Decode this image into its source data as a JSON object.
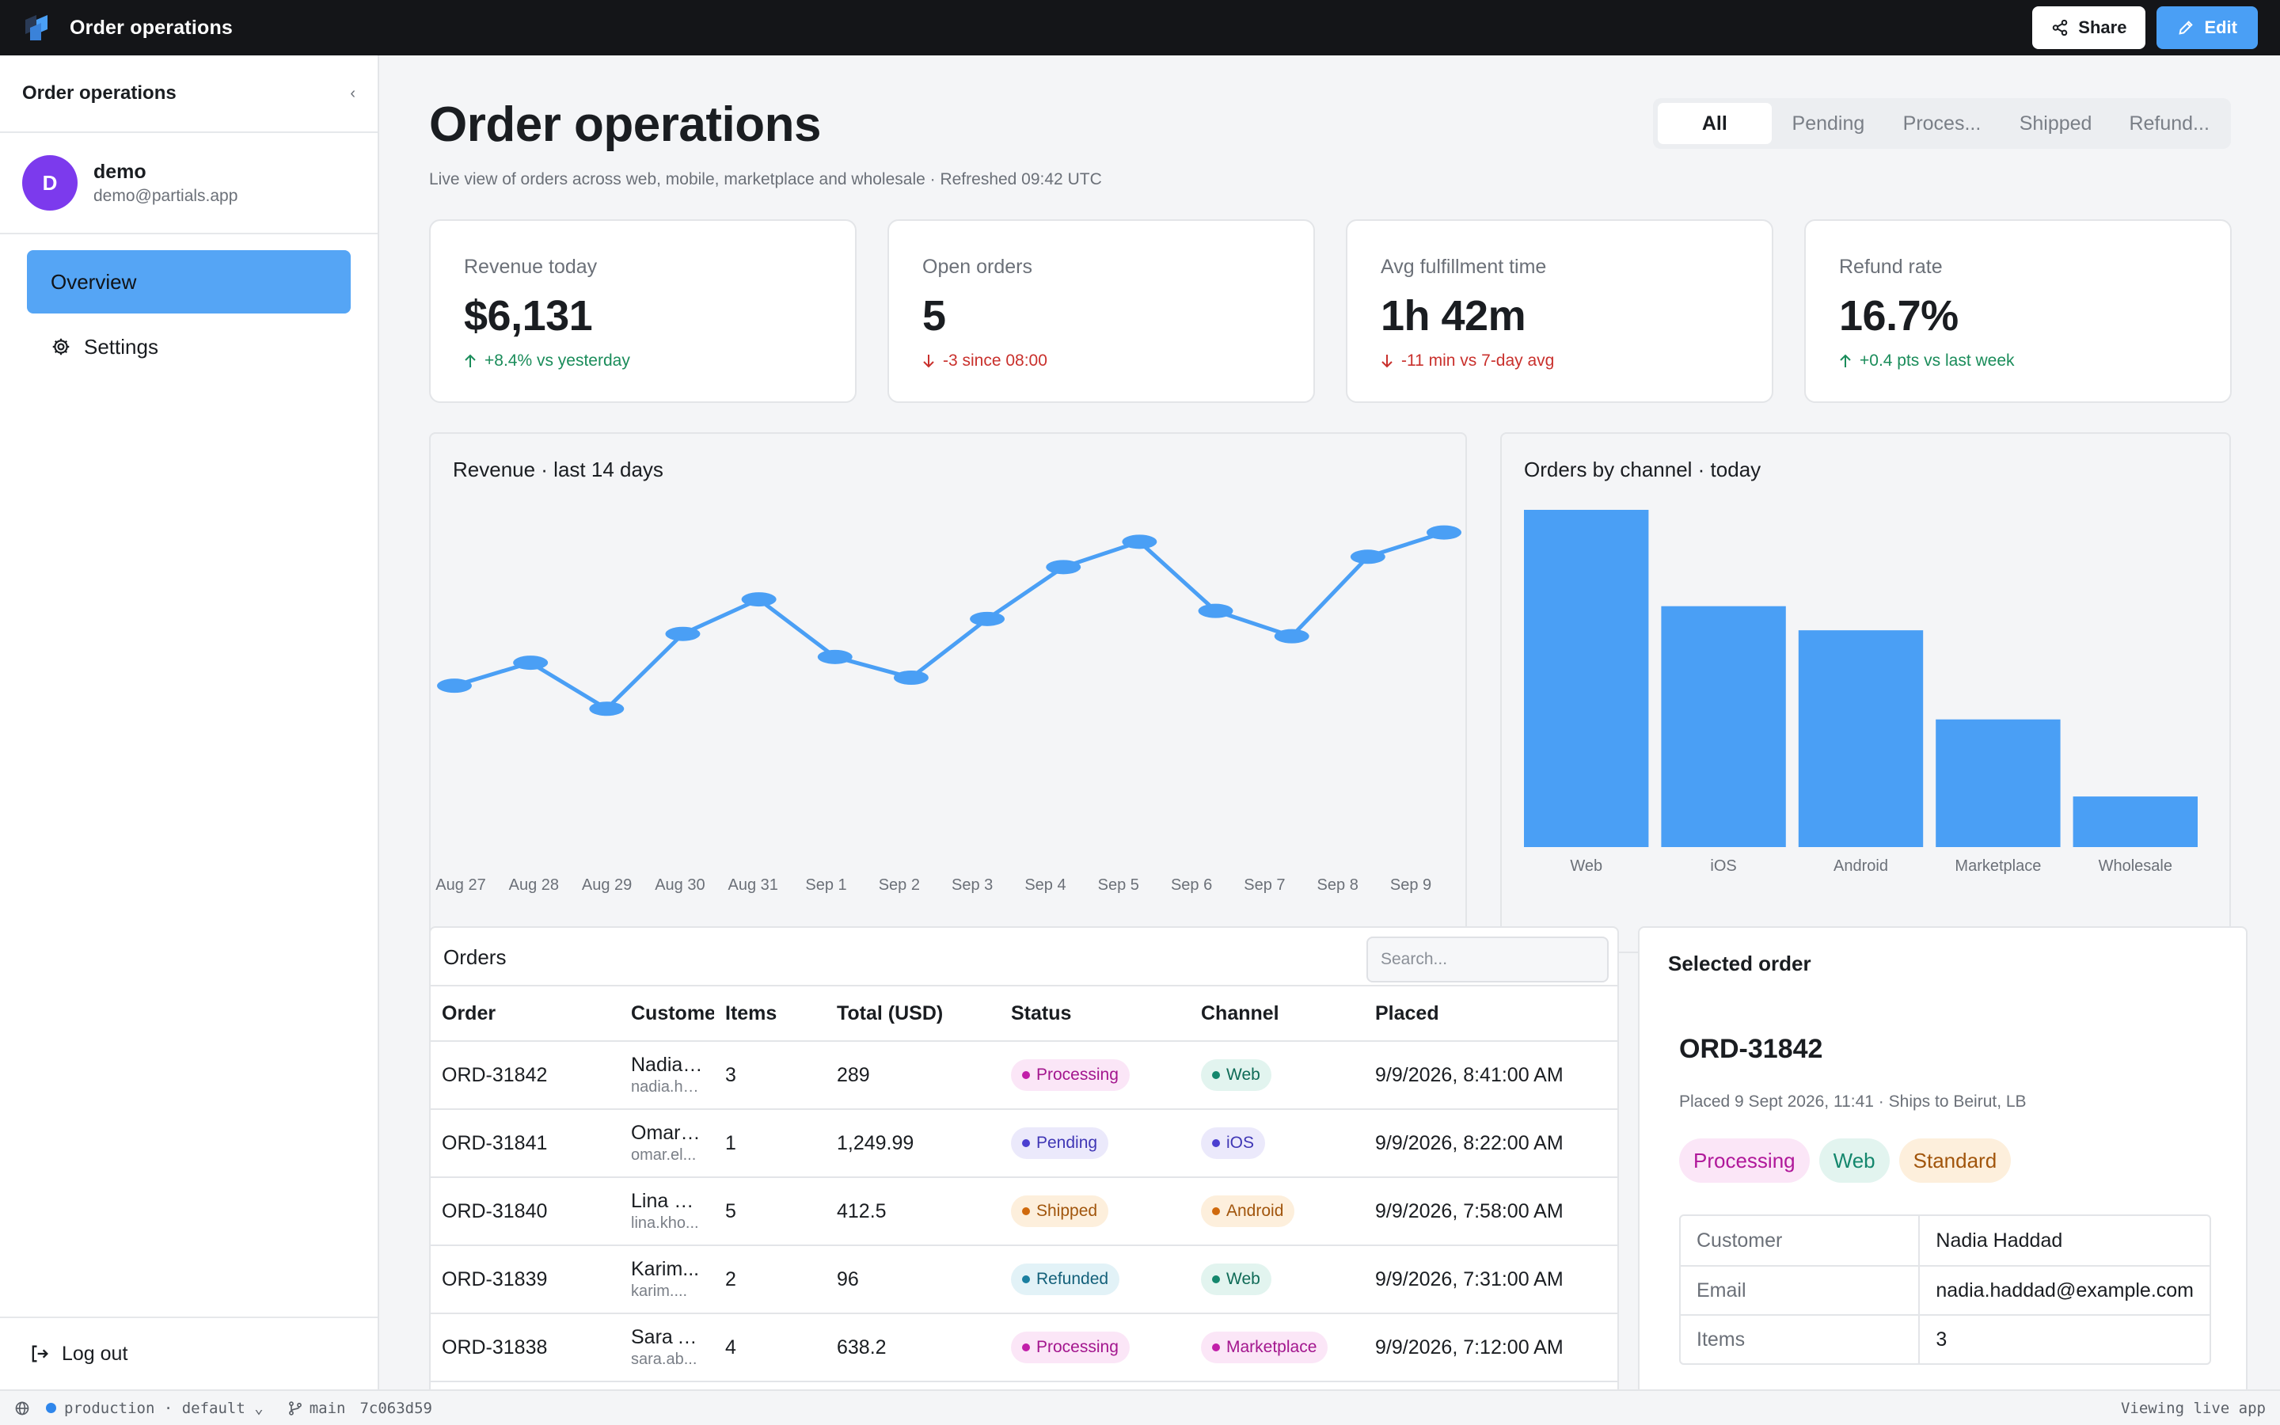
{
  "topbar": {
    "app_title": "Order operations",
    "share_label": "Share",
    "edit_label": "Edit"
  },
  "sidebar": {
    "title": "Order operations",
    "collapse_glyph": "‹",
    "user": {
      "initial": "D",
      "name": "demo",
      "email": "demo@partials.app"
    },
    "nav": [
      {
        "label": "Overview",
        "active": true
      },
      {
        "label": "Settings",
        "icon": "gear-icon"
      }
    ],
    "logout_label": "Log out"
  },
  "page": {
    "title": "Order operations",
    "subtitle": "Live view of orders across web, mobile, marketplace and wholesale · Refreshed 09:42 UTC",
    "tabs": [
      "All",
      "Pending",
      "Proces...",
      "Shipped",
      "Refund..."
    ],
    "active_tab": "All"
  },
  "kpis": [
    {
      "label": "Revenue today",
      "value": "$6,131",
      "delta": "+8.4% vs yesterday",
      "direction": "up"
    },
    {
      "label": "Open orders",
      "value": "5",
      "delta": "-3 since 08:00",
      "direction": "down"
    },
    {
      "label": "Avg fulfillment time",
      "value": "1h 42m",
      "delta": "-11 min vs 7-day avg",
      "direction": "down"
    },
    {
      "label": "Refund rate",
      "value": "16.7%",
      "delta": "+0.4 pts vs last week",
      "direction": "up"
    }
  ],
  "chart_data": [
    {
      "type": "line",
      "title": "Revenue · last 14 days",
      "categories": [
        "Aug 27",
        "Aug 28",
        "Aug 29",
        "Aug 30",
        "Aug 31",
        "Sep 1",
        "Sep 2",
        "Sep 3",
        "Sep 4",
        "Sep 5",
        "Sep 6",
        "Sep 7",
        "Sep 8",
        "Sep 9"
      ],
      "values": [
        4800,
        5000,
        4600,
        5250,
        5550,
        5050,
        4870,
        5380,
        5830,
        6050,
        5450,
        5230,
        5920,
        6131
      ],
      "ylim": [
        3000,
        6300
      ],
      "color": "#4a9ff5",
      "grid": false
    },
    {
      "type": "bar",
      "title": "Orders by channel · today",
      "categories": [
        "Web",
        "iOS",
        "Android",
        "Marketplace",
        "Wholesale"
      ],
      "values": [
        14,
        10,
        9,
        5.3,
        2.1
      ],
      "ylim": [
        0,
        14
      ],
      "color": "#4a9ff5",
      "grid": false
    }
  ],
  "orders": {
    "title": "Orders",
    "search_placeholder": "Search...",
    "columns": [
      "Order",
      "Customer",
      "Items",
      "Total (USD)",
      "Status",
      "Channel",
      "Placed"
    ],
    "rows": [
      {
        "id": "ORD-31842",
        "customer": "Nadia Haddad",
        "email": "nadia.haddad@example.com",
        "items": "3",
        "total": "289",
        "status": "Processing",
        "channel": "Web",
        "placed": "9/9/2026, 8:41:00 AM"
      },
      {
        "id": "ORD-31841",
        "customer": "Omar El...",
        "email": "omar.el...",
        "items": "1",
        "total": "1,249.99",
        "status": "Pending",
        "channel": "iOS",
        "placed": "9/9/2026, 8:22:00 AM"
      },
      {
        "id": "ORD-31840",
        "customer": "Lina Kho...",
        "email": "lina.kho...",
        "items": "5",
        "total": "412.5",
        "status": "Shipped",
        "channel": "Android",
        "placed": "9/9/2026, 7:58:00 AM"
      },
      {
        "id": "ORD-31839",
        "customer": "Karim...",
        "email": "karim....",
        "items": "2",
        "total": "96",
        "status": "Refunded",
        "channel": "Web",
        "placed": "9/9/2026, 7:31:00 AM"
      },
      {
        "id": "ORD-31838",
        "customer": "Sara Ab...",
        "email": "sara.ab...",
        "items": "4",
        "total": "638.2",
        "status": "Processing",
        "channel": "Marketplace",
        "placed": "9/9/2026, 7:12:00 AM"
      }
    ]
  },
  "styles": {
    "status": {
      "Processing": {
        "bg": "#fbe6f7",
        "fg": "#a3168e",
        "dot": "#c21fa9"
      },
      "Pending": {
        "bg": "#ebe9fb",
        "fg": "#3f36b5",
        "dot": "#4b3fd0"
      },
      "Shipped": {
        "bg": "#fdefdc",
        "fg": "#a1550c",
        "dot": "#d06a0d"
      },
      "Refunded": {
        "bg": "#e2f2f7",
        "fg": "#13607a",
        "dot": "#1a7fa0"
      }
    },
    "channel": {
      "Web": {
        "bg": "#e2f4ef",
        "fg": "#0f6b57",
        "dot": "#14876d"
      },
      "iOS": {
        "bg": "#ebe9fb",
        "fg": "#3f36b5",
        "dot": "#4b3fd0"
      },
      "Android": {
        "bg": "#fdefdc",
        "fg": "#a1550c",
        "dot": "#d06a0d"
      },
      "Marketplace": {
        "bg": "#fbe6f7",
        "fg": "#a3168e",
        "dot": "#c21fa9"
      }
    }
  },
  "selected": {
    "title": "Selected order",
    "id": "ORD-31842",
    "meta": "Placed 9 Sept 2026, 11:41 · Ships to Beirut, LB",
    "tags": [
      {
        "label": "Processing",
        "bg": "#fbe6f7",
        "fg": "#b0189a"
      },
      {
        "label": "Web",
        "bg": "#e2f4ef",
        "fg": "#14876d"
      },
      {
        "label": "Standard",
        "bg": "#fdefdc",
        "fg": "#a1550c"
      }
    ],
    "details": [
      {
        "key": "Customer",
        "value": "Nadia Haddad"
      },
      {
        "key": "Email",
        "value": "nadia.haddad@example.com"
      },
      {
        "key": "Items",
        "value": "3"
      }
    ]
  },
  "statusbar": {
    "env": "production · default",
    "branch": "main",
    "commit": "7c063d59",
    "right": "Viewing live app"
  }
}
